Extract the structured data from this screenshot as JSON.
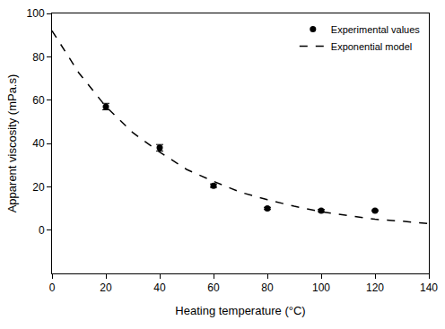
{
  "chart_data": {
    "type": "scatter",
    "x_label": "Heating temperature (°C)",
    "y_label": "Apparent viscosity (mPa.s)",
    "xlim": [
      0,
      140
    ],
    "xticks": [
      0,
      20,
      40,
      60,
      80,
      100,
      120,
      140
    ],
    "ylim": [
      -20,
      100
    ],
    "yticks": [
      0,
      20,
      40,
      60,
      80,
      100
    ],
    "grid": false,
    "legend": "upper right",
    "series": [
      {
        "name": "Experimental values",
        "type": "scatter",
        "marker": "circle",
        "color": "#000000",
        "x": [
          20,
          40,
          60,
          80,
          100,
          120
        ],
        "values": [
          57,
          38,
          20.5,
          10,
          9,
          9
        ],
        "errors": [
          1.5,
          1.5,
          0.8,
          0.5,
          0.5,
          0.3
        ]
      },
      {
        "name": "Exponential model",
        "type": "line",
        "line_style": "dash",
        "color": "#000000",
        "x": [
          0,
          10,
          20,
          30,
          40,
          50,
          60,
          70,
          80,
          90,
          100,
          110,
          120,
          130,
          140
        ],
        "values": [
          92,
          72.5,
          57,
          45,
          36,
          28,
          22.5,
          17.5,
          14,
          11,
          8.5,
          6.8,
          5,
          4.1,
          3
        ]
      }
    ]
  }
}
